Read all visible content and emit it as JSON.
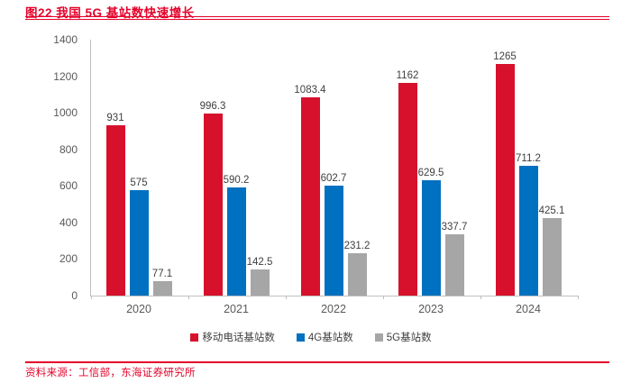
{
  "header": {
    "title": "图22 我国 5G 基站数快速增长"
  },
  "colors": {
    "accent_red": "#E4032B",
    "axis_line": "#BFBFBF",
    "axis_text": "#595959",
    "label_text": "#3F3F3F"
  },
  "chart_data": {
    "type": "bar",
    "title": "我国 5G 基站数快速增长",
    "categories": [
      "2020",
      "2021",
      "2022",
      "2023",
      "2024"
    ],
    "series": [
      {
        "name": "移动电话基站数",
        "key": "mobile-phone-base-stations",
        "color": "#D7112C",
        "values": [
          931,
          996.3,
          1083.4,
          1162,
          1265
        ]
      },
      {
        "name": "4G基站数",
        "key": "4g-base-stations",
        "color": "#0070C0",
        "values": [
          575,
          590.2,
          602.7,
          629.5,
          711.2
        ]
      },
      {
        "name": "5G基站数",
        "key": "5g-base-stations",
        "color": "#A6A6A6",
        "values": [
          77.1,
          142.5,
          231.2,
          337.7,
          425.1
        ]
      }
    ],
    "xlabel": "",
    "ylabel": "",
    "ylim": [
      0,
      1400
    ],
    "yticks": [
      0,
      200,
      400,
      600,
      800,
      1000,
      1200,
      1400
    ],
    "grid": false,
    "data_labels": true,
    "legend_position": "bottom"
  },
  "footer": {
    "source_label": "资料来源：",
    "source_text": "工信部，东海证券研究所"
  }
}
